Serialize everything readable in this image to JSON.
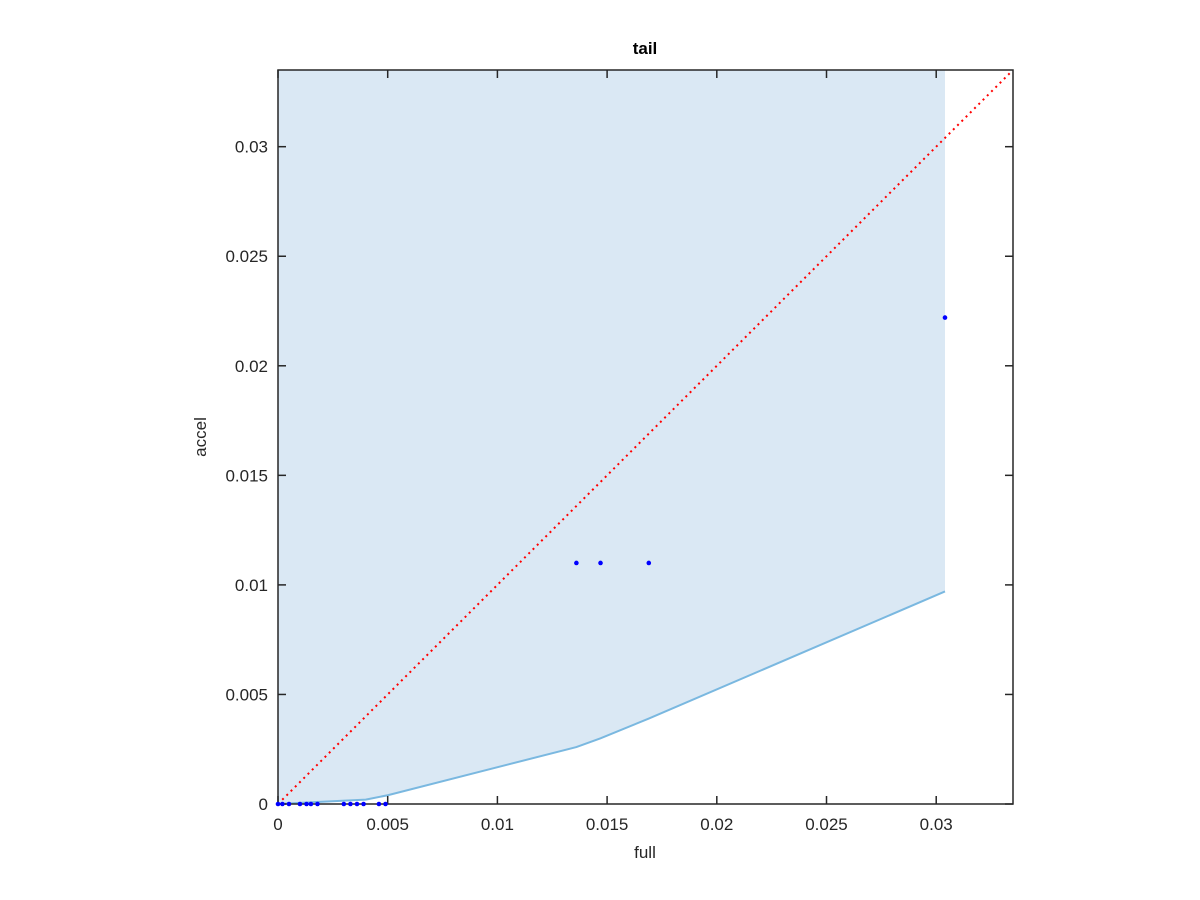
{
  "chart_data": {
    "type": "scatter",
    "title": "tail",
    "x_label": "full",
    "y_label": "accel",
    "xlim": [
      0,
      0.0335
    ],
    "ylim": [
      0,
      0.0335
    ],
    "xticks": [
      0,
      0.005,
      0.01,
      0.015,
      0.02,
      0.025,
      0.03
    ],
    "yticks": [
      0,
      0.005,
      0.01,
      0.015,
      0.02,
      0.025,
      0.03
    ],
    "box": true,
    "band": {
      "color": "#dae8f4",
      "line_color": "#7ab8e0",
      "x": [
        0,
        0.002,
        0.004,
        0.005,
        0.0136,
        0.0147,
        0.0169,
        0.0304
      ],
      "lower": [
        0,
        0.0001,
        0.0002,
        0.0004,
        0.0026,
        0.003,
        0.0039,
        0.0097
      ],
      "upper": [
        0.0335,
        0.0335,
        0.0335,
        0.0335,
        0.0335,
        0.0335,
        0.0335,
        0.0335
      ]
    },
    "reference_line": {
      "color": "#ff0000",
      "style": "dotted",
      "x": [
        0,
        0.0335
      ],
      "y": [
        0,
        0.0335
      ]
    },
    "series": [
      {
        "color": "#0000ff",
        "x": [
          0,
          0.0002,
          0.0005,
          0.001,
          0.0013,
          0.0015,
          0.0018,
          0.003,
          0.0033,
          0.0036,
          0.0039,
          0.0046,
          0.0049,
          0.0136,
          0.0147,
          0.0169,
          0.0304
        ],
        "values": [
          0,
          0,
          0,
          0,
          0,
          0,
          0,
          0,
          0,
          0,
          0,
          0,
          0,
          0.011,
          0.011,
          0.011,
          0.0222
        ]
      }
    ]
  }
}
